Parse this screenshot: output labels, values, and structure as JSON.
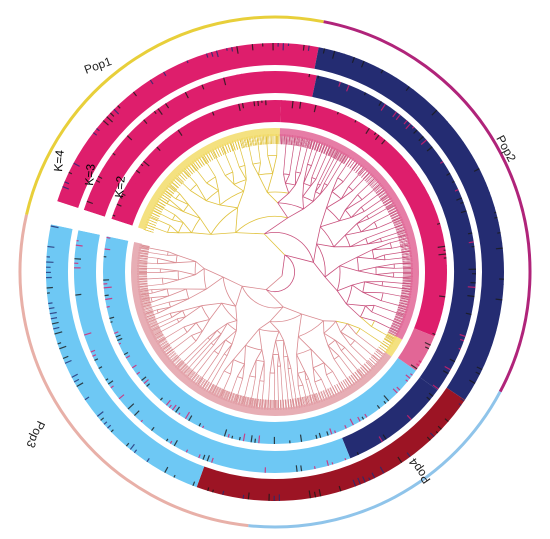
{
  "figure": {
    "populations": [
      {
        "label": "Pop1",
        "color": "#e8cf3a",
        "from": 283,
        "to": 11
      },
      {
        "label": "Pop2",
        "color": "#b0247a",
        "from": 11,
        "to": 118
      },
      {
        "label": "Pop4",
        "color": "#8fc4ea",
        "from": 118,
        "to": 186
      },
      {
        "label": "Pop3",
        "color": "#e8b0a8",
        "from": 186,
        "to": 283
      }
    ],
    "k_labels": [
      "K=4",
      "K=3",
      "K=2"
    ],
    "colors": {
      "magenta": "#de1e6c",
      "navy": "#242c72",
      "sky": "#6ec8f4",
      "darkred": "#9c1424",
      "yellow": "#f2dc6a",
      "pink": "#e3a0a8",
      "rose": "#e26696",
      "black_noise": "#1a1a1a"
    }
  }
}
